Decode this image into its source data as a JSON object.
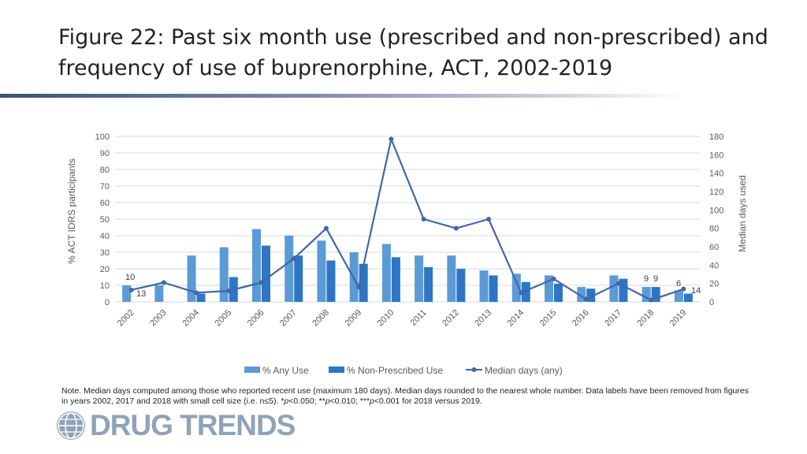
{
  "slide": {
    "title": "Figure 22: Past six month use (prescribed and non-prescribed) and frequency of use of buprenorphine, ACT, 2002-2019",
    "note_prefix": "Note. Median days computed among those who reported recent use (maximum 180 days). Median days rounded to the nearest whole number. Data labels have been removed from figures in years 2002, 2017 and 2018 with small cell size (i.e. n≤5). *",
    "note_p1": "p",
    "note_mid1": "<0.050; **",
    "note_p2": "p",
    "note_mid2": "<0.010; ***",
    "note_p3": "p",
    "note_suffix": "<0.001 for 2018 versus 2019.",
    "logo_text": "DRUG TRENDS"
  },
  "colors": {
    "any_use": "#5b9bd5",
    "non_prescribed": "#2e75c6",
    "median": "#4267a8",
    "axis_text": "#595959",
    "grid": "#d9d9d9"
  },
  "icons": {
    "logo": "globe-icon"
  },
  "chart_data": {
    "type": "bar",
    "categories": [
      "2002",
      "2003",
      "2004",
      "2005",
      "2006",
      "2007",
      "2008",
      "2009",
      "2010",
      "2011",
      "2012",
      "2013",
      "2014",
      "2015",
      "2016",
      "2017",
      "2018",
      "2019"
    ],
    "series": [
      {
        "name": "% Any Use",
        "type": "bar",
        "axis": "left",
        "values": [
          10,
          10,
          28,
          33,
          44,
          40,
          37,
          30,
          35,
          28,
          28,
          19,
          17,
          16,
          9,
          16,
          9,
          7
        ]
      },
      {
        "name": "% Non-Prescribed Use",
        "type": "bar",
        "axis": "left",
        "values": [
          null,
          null,
          5,
          15,
          34,
          28,
          25,
          23,
          27,
          21,
          20,
          16,
          12,
          11,
          8,
          14,
          9,
          5
        ]
      },
      {
        "name": "Median days (any)",
        "type": "line",
        "axis": "right",
        "values": [
          13,
          21,
          10,
          12,
          21,
          47,
          80,
          16,
          177,
          90,
          80,
          90,
          10,
          25,
          3,
          20,
          2,
          14
        ]
      }
    ],
    "ylabel": "% ACT IDRS participants",
    "y2label": "Median days used",
    "ylim": [
      0,
      100
    ],
    "y2lim": [
      0,
      180
    ],
    "yticks": [
      "0",
      "10",
      "20",
      "30",
      "40",
      "50",
      "60",
      "70",
      "80",
      "90",
      "100"
    ],
    "y2ticks": [
      "0",
      "20",
      "40",
      "60",
      "80",
      "100",
      "120",
      "140",
      "160",
      "180"
    ],
    "data_labels": [
      "10",
      "13",
      "9",
      "9",
      "6",
      "14"
    ],
    "grid": true,
    "legend_position": "bottom"
  }
}
